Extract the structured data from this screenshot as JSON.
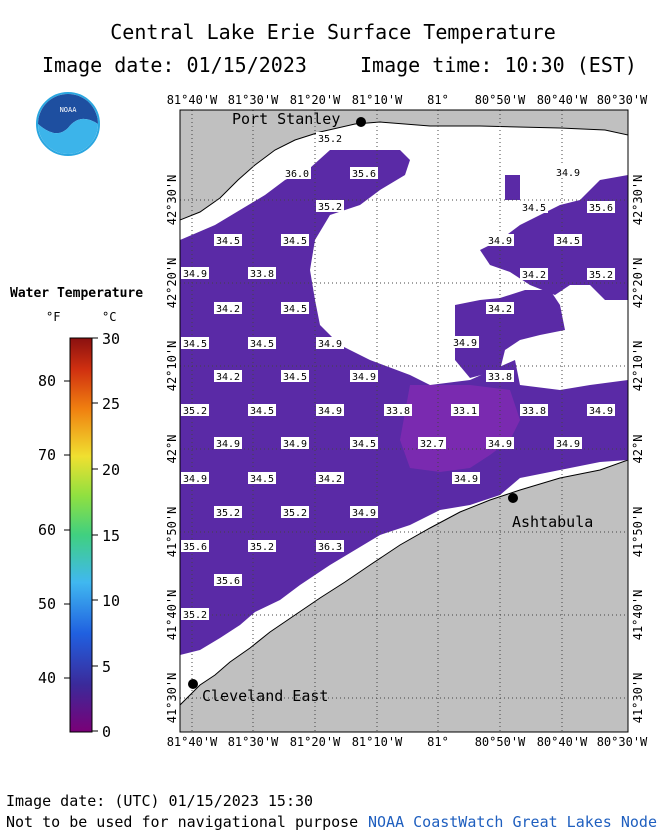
{
  "header": {
    "title": "Central Lake Erie Surface Temperature",
    "image_date": "Image date: 01/15/2023",
    "image_time": "Image time: 10:30 (EST)"
  },
  "logo": {
    "text": "NOAA"
  },
  "legend": {
    "title": "Water Temperature",
    "unit_f": "°F",
    "unit_c": "°C",
    "f_ticks": [
      "80",
      "70",
      "60",
      "50",
      "40"
    ],
    "c_ticks": [
      "30",
      "25",
      "20",
      "15",
      "10",
      "5",
      "0"
    ]
  },
  "axes": {
    "lon_labels": [
      "81°40'W",
      "81°30'W",
      "81°20'W",
      "81°10'W",
      "81°",
      "80°50'W",
      "80°40'W",
      "80°30'W"
    ],
    "lat_labels": [
      "42°30'N",
      "42°20'N",
      "42°10'N",
      "42°N",
      "41°50'N",
      "41°40'N",
      "41°30'N"
    ]
  },
  "cities": [
    {
      "name": "Port Stanley"
    },
    {
      "name": "Ashtabula"
    },
    {
      "name": "Cleveland East"
    }
  ],
  "temperatures": [
    "35.2",
    "36.0",
    "35.6",
    "35.2",
    "34.5",
    "34.5",
    "34.9",
    "33.8",
    "34.2",
    "34.5",
    "34.5",
    "34.5",
    "34.9",
    "34.2",
    "34.5",
    "34.9",
    "35.2",
    "34.5",
    "34.9",
    "33.8",
    "34.9",
    "34.9",
    "34.5",
    "34.9",
    "34.5",
    "34.2",
    "35.2",
    "35.2",
    "34.9",
    "35.6",
    "35.2",
    "36.3",
    "35.6",
    "35.2",
    "34.9",
    "34.5",
    "35.6",
    "34.9",
    "34.5",
    "34.2",
    "35.2",
    "34.2",
    "34.9",
    "33.8",
    "33.1",
    "32.7",
    "34.9",
    "33.8",
    "34.9",
    "34.9",
    "34.9"
  ],
  "footer": {
    "utc_date": "Image date: (UTC) 01/15/2023  15:30",
    "disclaimer": "Not to be used for navigational purpose",
    "credit": "NOAA CoastWatch Great Lakes Node"
  },
  "colors": {
    "land": "#c0c0c0",
    "ice": "#ffffff",
    "water_cold": "#5a2aa6",
    "water_warm": "#7a2ab0"
  }
}
